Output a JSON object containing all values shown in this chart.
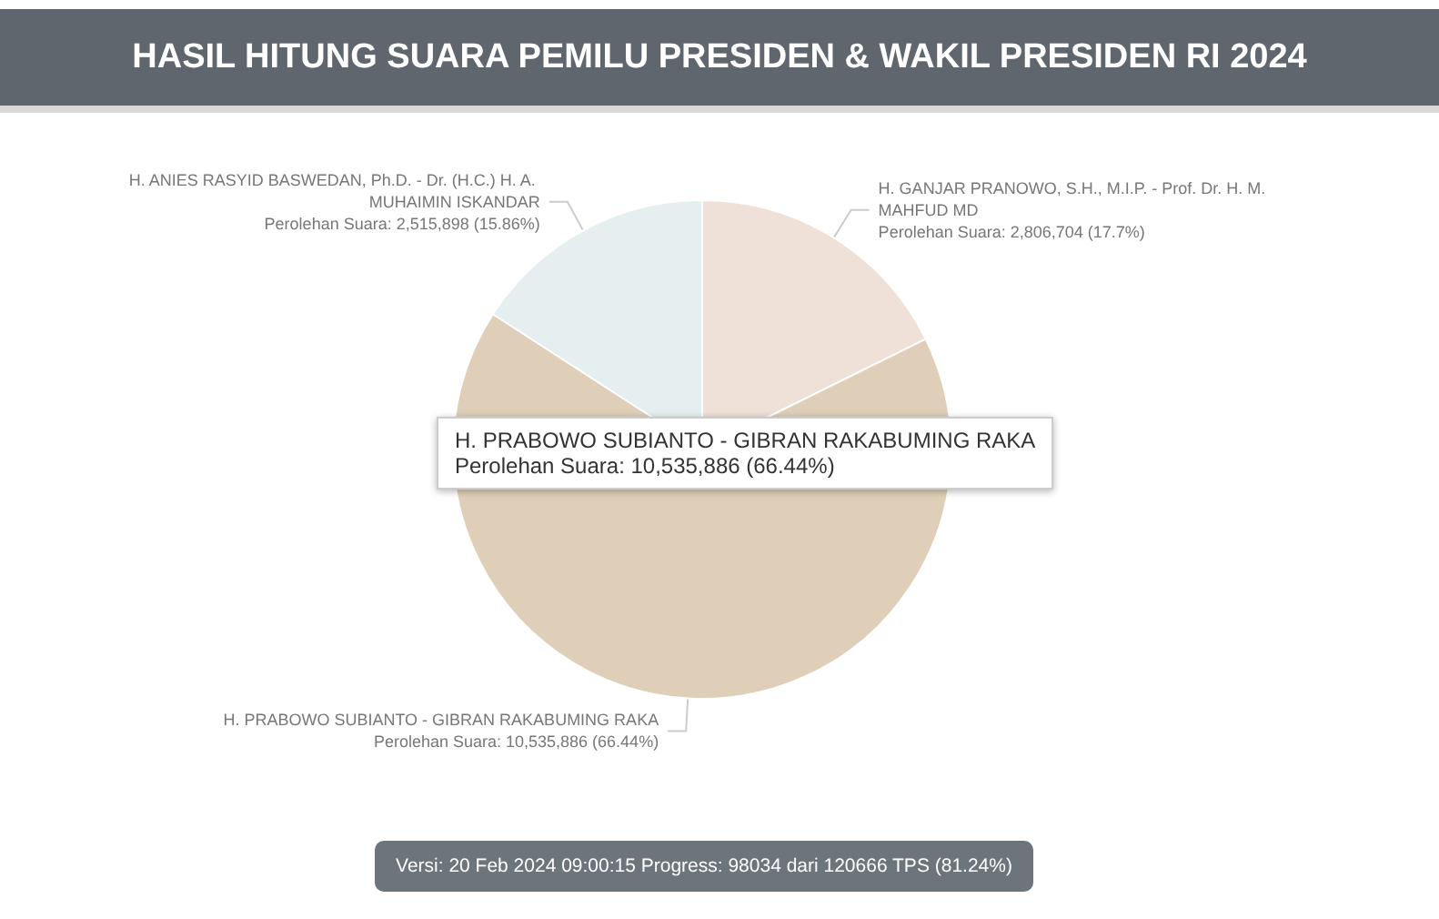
{
  "chart_data": {
    "type": "pie",
    "title": "HASIL HITUNG SUARA PEMILU PRESIDEN & WAKIL PRESIDEN RI 2024",
    "categories": [
      "H. GANJAR PRANOWO, S.H., M.I.P. - Prof. Dr. H. M. MAHFUD MD",
      "H. PRABOWO SUBIANTO - GIBRAN RAKABUMING RAKA",
      "H. ANIES RASYID BASWEDAN, Ph.D. - Dr. (H.C.) H. A. MUHAIMIN ISKANDAR"
    ],
    "values": [
      2806704,
      10535886,
      2515898
    ],
    "colors": [
      "#efe0d8",
      "#e0cfb8",
      "#e5eff0"
    ],
    "value_labels": [
      "Perolehan Suara: 2,806,704 (17.7%)",
      "Perolehan Suara: 10,535,886 (66.44%)",
      "Perolehan Suara: 2,515,898 (15.86%)"
    ],
    "annotations": [
      "H. PRABOWO SUBIANTO - GIBRAN RAKABUMING RAKA\nPerolehan Suara: 10,535,886 (66.44%)",
      "Versi: 20 Feb 2024 09:00:15 Progress: 98034 dari 120666 TPS (81.24%)"
    ],
    "legend": false
  }
}
